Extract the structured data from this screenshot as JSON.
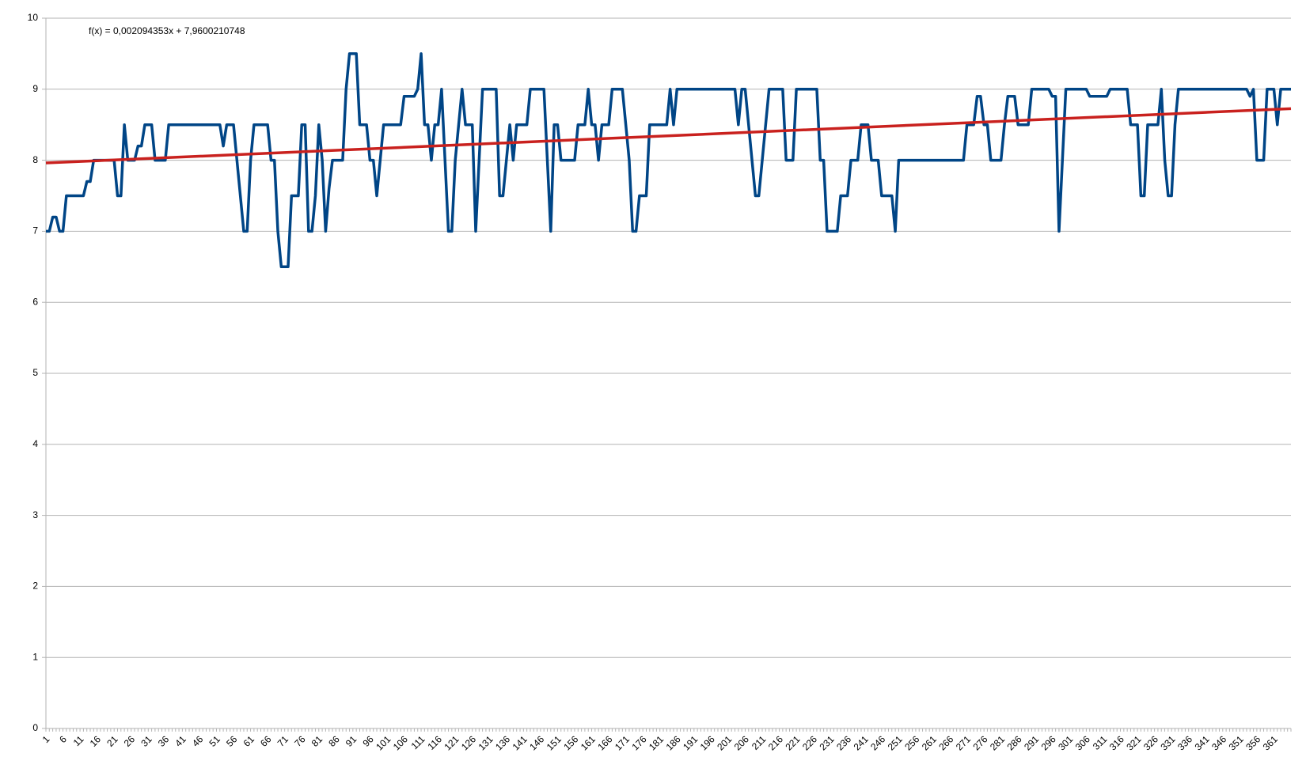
{
  "chart_data": {
    "type": "line",
    "categories": [
      1,
      null,
      null,
      null,
      null,
      6,
      null,
      null,
      null,
      null,
      11,
      null,
      null,
      null,
      null,
      16,
      null,
      null,
      null,
      null,
      21,
      null,
      null,
      null,
      null,
      26,
      null,
      null,
      null,
      null,
      31,
      null,
      null,
      null,
      null,
      36,
      null,
      null,
      null,
      null,
      41,
      null,
      null,
      null,
      null,
      46,
      null,
      null,
      null,
      null,
      51,
      null,
      null,
      null,
      null,
      56,
      null,
      null,
      null,
      null,
      61,
      null,
      null,
      null,
      null,
      66,
      null,
      null,
      null,
      null,
      71,
      null,
      null,
      null,
      null,
      76,
      null,
      null,
      null,
      null,
      81,
      null,
      null,
      null,
      null,
      86,
      null,
      null,
      null,
      null,
      91,
      null,
      null,
      null,
      null,
      96,
      null,
      null,
      null,
      null,
      101,
      null,
      null,
      null,
      null,
      106,
      null,
      null,
      null,
      null,
      111,
      null,
      null,
      null,
      null,
      116,
      null,
      null,
      null,
      null,
      121,
      null,
      null,
      null,
      null,
      126,
      null,
      null,
      null,
      null,
      131,
      null,
      null,
      null,
      null,
      136,
      null,
      null,
      null,
      null,
      141,
      null,
      null,
      null,
      null,
      146,
      null,
      null,
      null,
      null,
      151,
      null,
      null,
      null,
      null,
      156,
      null,
      null,
      null,
      null,
      161,
      null,
      null,
      null,
      null,
      166,
      null,
      null,
      null,
      null,
      171,
      null,
      null,
      null,
      null,
      176,
      null,
      null,
      null,
      null,
      181,
      null,
      null,
      null,
      null,
      186,
      null,
      null,
      null,
      null,
      191,
      null,
      null,
      null,
      null,
      196,
      null,
      null,
      null,
      null,
      201,
      null,
      null,
      null,
      null,
      206,
      null,
      null,
      null,
      null,
      211,
      null,
      null,
      null,
      null,
      216,
      null,
      null,
      null,
      null,
      221,
      null,
      null,
      null,
      null,
      226,
      null,
      null,
      null,
      null,
      231,
      null,
      null,
      null,
      null,
      236,
      null,
      null,
      null,
      null,
      241,
      null,
      null,
      null,
      null,
      246,
      null,
      null,
      null,
      null,
      251,
      null,
      null,
      null,
      null,
      256,
      null,
      null,
      null,
      null,
      261,
      null,
      null,
      null,
      null,
      266,
      null,
      null,
      null,
      null,
      271,
      null,
      null,
      null,
      null,
      276,
      null,
      null,
      null,
      null,
      281,
      null,
      null,
      null,
      null,
      286,
      null,
      null,
      null,
      null,
      291,
      null,
      null,
      null,
      null,
      296,
      null,
      null,
      null,
      null,
      301,
      null,
      null,
      null,
      null,
      306,
      null,
      null,
      null,
      null,
      311,
      null,
      null,
      null,
      null,
      316,
      null,
      null,
      null,
      null,
      321,
      null,
      null,
      null,
      null,
      326,
      null,
      null,
      null,
      null,
      331,
      null,
      null,
      null,
      null,
      336,
      null,
      null,
      null,
      null,
      341,
      null,
      null,
      null,
      null,
      346,
      null,
      null,
      null,
      null,
      351,
      null,
      null,
      null,
      null,
      356,
      null,
      null,
      null,
      null,
      361,
      null,
      null,
      null,
      null,
      null
    ],
    "series": [
      {
        "color": "#004586",
        "values": [
          7,
          7,
          7.2,
          7.2,
          7,
          7,
          7.5,
          7.5,
          7.5,
          7.5,
          7.5,
          7.5,
          7.7,
          7.7,
          8,
          8,
          8,
          8,
          8,
          8,
          8,
          7.5,
          7.5,
          8.5,
          8,
          8,
          8,
          8.2,
          8.2,
          8.5,
          8.5,
          8.5,
          8,
          8,
          8,
          8,
          8.5,
          8.5,
          8.5,
          8.5,
          8.5,
          8.5,
          8.5,
          8.5,
          8.5,
          8.5,
          8.5,
          8.5,
          8.5,
          8.5,
          8.5,
          8.5,
          8.2,
          8.5,
          8.5,
          8.5,
          8,
          7.5,
          7,
          7,
          8,
          8.5,
          8.5,
          8.5,
          8.5,
          8.5,
          8,
          8,
          7,
          6.5,
          6.5,
          6.5,
          7.5,
          7.5,
          7.5,
          8.5,
          8.5,
          7,
          7,
          7.5,
          8.5,
          8,
          7,
          7.6,
          8,
          8,
          8,
          8,
          9,
          9.5,
          9.5,
          9.5,
          8.5,
          8.5,
          8.5,
          8,
          8,
          7.5,
          8,
          8.5,
          8.5,
          8.5,
          8.5,
          8.5,
          8.5,
          8.9,
          8.9,
          8.9,
          8.9,
          9,
          9.5,
          8.5,
          8.5,
          8,
          8.5,
          8.5,
          9,
          8,
          7,
          7,
          8,
          8.5,
          9,
          8.5,
          8.5,
          8.5,
          7,
          8,
          9,
          9,
          9,
          9,
          9,
          7.5,
          7.5,
          8,
          8.5,
          8,
          8.5,
          8.5,
          8.5,
          8.5,
          9,
          9,
          9,
          9,
          9,
          8,
          7,
          8.5,
          8.5,
          8,
          8,
          8,
          8,
          8,
          8.5,
          8.5,
          8.5,
          9,
          8.5,
          8.5,
          8,
          8.5,
          8.5,
          8.5,
          9,
          9,
          9,
          9,
          8.5,
          8,
          7,
          7,
          7.5,
          7.5,
          7.5,
          8.5,
          8.5,
          8.5,
          8.5,
          8.5,
          8.5,
          9,
          8.5,
          9,
          9,
          9,
          9,
          9,
          9,
          9,
          9,
          9,
          9,
          9,
          9,
          9,
          9,
          9,
          9,
          9,
          9,
          8.5,
          9,
          9,
          8.5,
          8,
          7.5,
          7.5,
          8,
          8.5,
          9,
          9,
          9,
          9,
          9,
          8,
          8,
          8,
          9,
          9,
          9,
          9,
          9,
          9,
          9,
          8,
          8,
          7,
          7,
          7,
          7,
          7.5,
          7.5,
          7.5,
          8,
          8,
          8,
          8.5,
          8.5,
          8.5,
          8,
          8,
          8,
          7.5,
          7.5,
          7.5,
          7.5,
          7,
          8,
          8,
          8,
          8,
          8,
          8,
          8,
          8,
          8,
          8,
          8,
          8,
          8,
          8,
          8,
          8,
          8,
          8,
          8,
          8,
          8.5,
          8.5,
          8.5,
          8.9,
          8.9,
          8.5,
          8.5,
          8,
          8,
          8,
          8,
          8.5,
          8.9,
          8.9,
          8.9,
          8.5,
          8.5,
          8.5,
          8.5,
          9,
          9,
          9,
          9,
          9,
          9,
          8.9,
          8.9,
          7,
          8,
          9,
          9,
          9,
          9,
          9,
          9,
          9,
          8.9,
          8.9,
          8.9,
          8.9,
          8.9,
          8.9,
          9,
          9,
          9,
          9,
          9,
          9,
          8.5,
          8.5,
          8.5,
          7.5,
          7.5,
          8.5,
          8.5,
          8.5,
          8.5,
          9,
          8,
          7.5,
          7.5,
          8.5,
          9,
          9,
          9,
          9,
          9,
          9,
          9,
          9,
          9,
          9,
          9,
          9,
          9,
          9,
          9,
          9,
          9,
          9,
          9,
          9,
          9,
          8.9,
          9,
          8,
          8,
          8,
          9,
          9,
          9,
          8.5,
          9,
          9,
          9,
          9
        ]
      }
    ],
    "trendline": {
      "label": "f(x) = 0,002094353x + 7,9600210748",
      "slope": 0.002094353,
      "intercept": 7.9600210748,
      "color": "#c9211e"
    },
    "ylim": [
      0,
      10
    ],
    "yticks": [
      0,
      1,
      2,
      3,
      4,
      5,
      6,
      7,
      8,
      9,
      10
    ],
    "grid": true
  }
}
